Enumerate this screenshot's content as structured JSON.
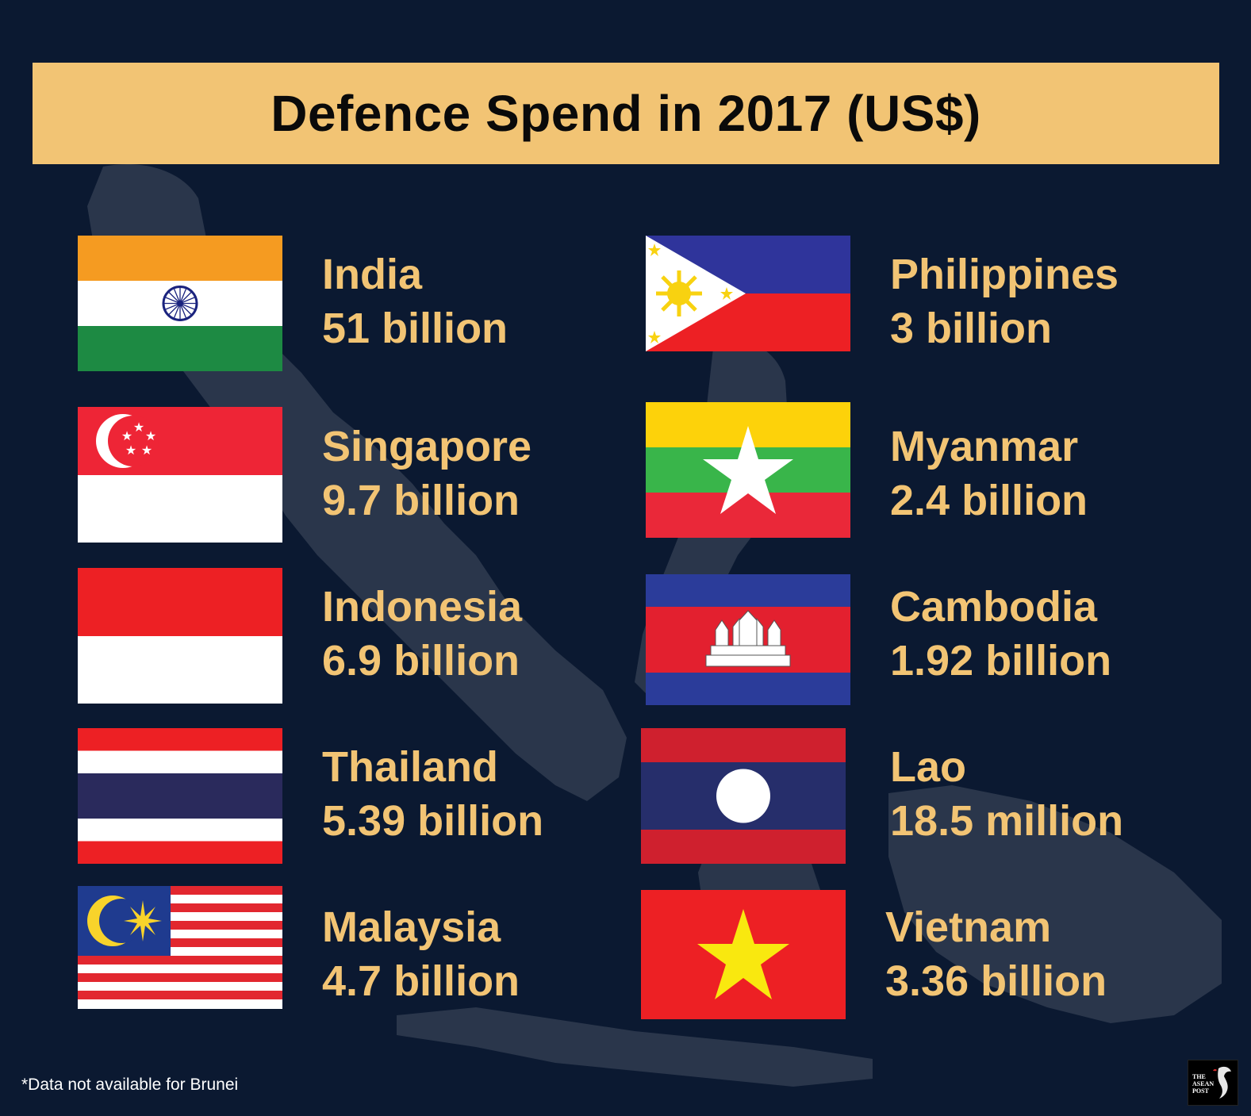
{
  "title": "Defence Spend in 2017 (US$)",
  "footnote": "*Data not available for Brunei",
  "logo": {
    "line1": "THE",
    "line2": "ASEAN",
    "line3": "POST"
  },
  "countries": [
    {
      "name": "India",
      "value": "51 billion",
      "flag": "india-flag"
    },
    {
      "name": "Singapore",
      "value": "9.7 billion",
      "flag": "singapore-flag"
    },
    {
      "name": "Indonesia",
      "value": "6.9 billion",
      "flag": "indonesia-flag"
    },
    {
      "name": "Thailand",
      "value": "5.39 billion",
      "flag": "thailand-flag"
    },
    {
      "name": "Malaysia",
      "value": "4.7 billion",
      "flag": "malaysia-flag"
    },
    {
      "name": "Philippines",
      "value": "3 billion",
      "flag": "philippines-flag"
    },
    {
      "name": "Myanmar",
      "value": "2.4 billion",
      "flag": "myanmar-flag"
    },
    {
      "name": "Cambodia",
      "value": "1.92 billion",
      "flag": "cambodia-flag"
    },
    {
      "name": "Lao",
      "value": "18.5 million",
      "flag": "laos-flag"
    },
    {
      "name": "Vietnam",
      "value": "3.36 billion",
      "flag": "vietnam-flag"
    }
  ],
  "colors": {
    "background": "#0b1931",
    "title_bar": "#f2c474",
    "label_text": "#f2c474"
  }
}
